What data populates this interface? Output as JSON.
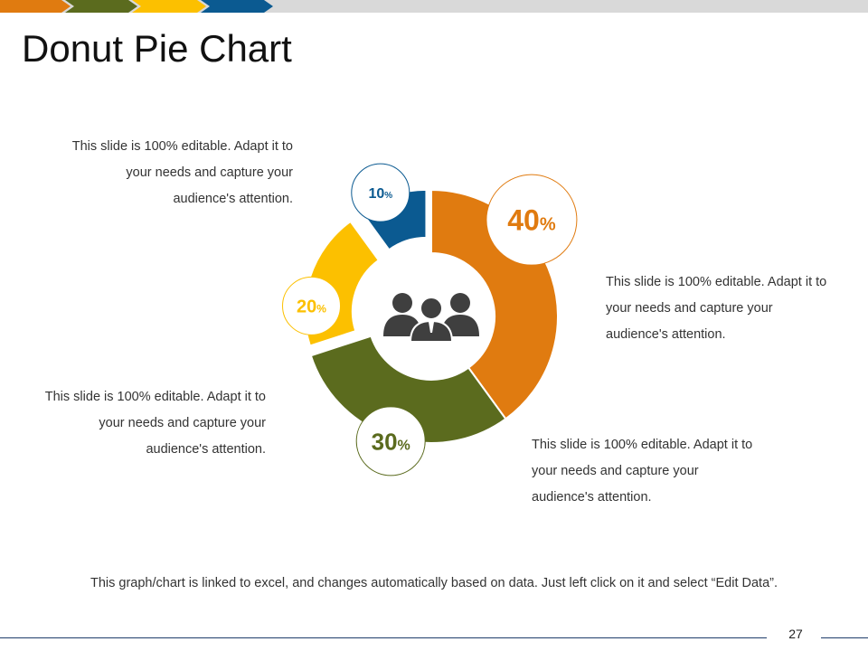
{
  "slide": {
    "title": "Donut Pie Chart",
    "page_number": "27",
    "footer_note": "This graph/chart is linked to excel, and changes automatically  based on data. Just left click on it and select “Edit Data”.",
    "top_bar_colors": [
      "#e07b10",
      "#5b6b1e",
      "#fcc000",
      "#0b5a91",
      "#d9d9d9"
    ]
  },
  "notes": [
    {
      "text": "This slide is 100% editable. Adapt it to your needs and capture your audience's attention."
    },
    {
      "text": "This slide is 100% editable. Adapt it to your needs and capture your audience's attention."
    },
    {
      "text": "This slide is 100% editable. Adapt it to your needs and capture your audience's attention."
    },
    {
      "text": "This slide is 100% editable. Adapt it to your needs and capture your audience's attention."
    }
  ],
  "center_icon": "people-group-icon",
  "chart_data": {
    "type": "pie",
    "title": "",
    "slices": [
      {
        "value": 40,
        "number_label": "40",
        "unit_label": "%",
        "color": "#e07b10"
      },
      {
        "value": 30,
        "number_label": "30",
        "unit_label": "%",
        "color": "#5b6b1e"
      },
      {
        "value": 20,
        "number_label": "20",
        "unit_label": "%",
        "color": "#fcc000"
      },
      {
        "value": 10,
        "number_label": "10",
        "unit_label": "%",
        "color": "#0b5a91"
      }
    ]
  }
}
